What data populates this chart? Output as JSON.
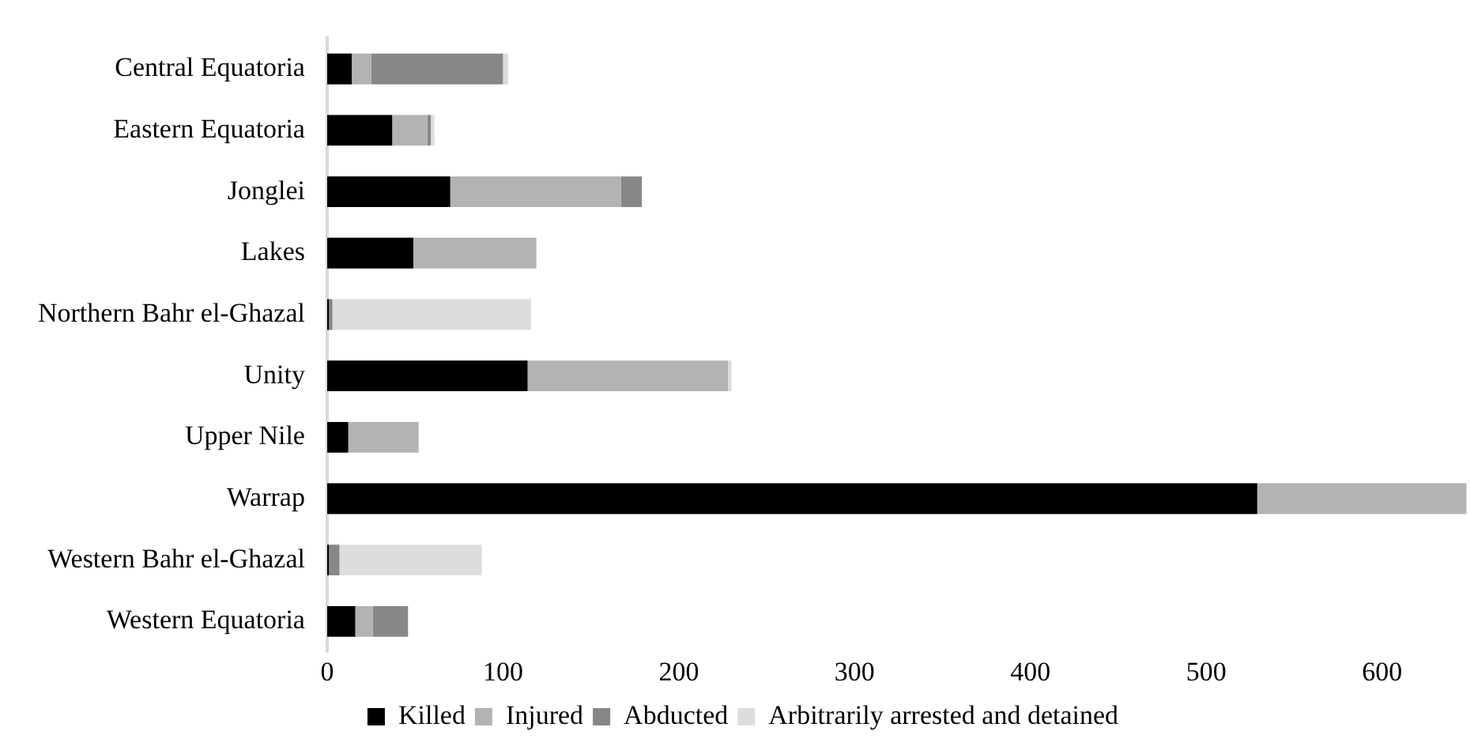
{
  "chart_data": {
    "type": "bar",
    "orientation": "horizontal",
    "stacked": true,
    "categories": [
      "Central Equatoria",
      "Eastern Equatoria",
      "Jonglei",
      "Lakes",
      "Northern Bahr el-Ghazal",
      "Unity",
      "Upper Nile",
      "Warrap",
      "Western Bahr el-Ghazal",
      "Western Equatoria"
    ],
    "series": [
      {
        "name": "Killed",
        "color": "#000000",
        "values": [
          14,
          37,
          70,
          49,
          1,
          114,
          12,
          529,
          1,
          16
        ]
      },
      {
        "name": "Injured",
        "color": "#b3b3b3",
        "values": [
          11,
          20,
          97,
          70,
          0,
          114,
          40,
          119,
          0,
          10
        ]
      },
      {
        "name": "Abducted",
        "color": "#878787",
        "values": [
          75,
          2,
          12,
          0,
          2,
          0,
          0,
          0,
          6,
          20
        ]
      },
      {
        "name": "Arbitrarily arrested and detained",
        "color": "#dddddd",
        "values": [
          3,
          2,
          0,
          0,
          113,
          2,
          0,
          0,
          81,
          0
        ]
      }
    ],
    "xlim": [
      0,
      650
    ],
    "xticks": [
      0,
      100,
      200,
      300,
      400,
      500,
      600
    ],
    "grid": false,
    "legend": "bottom"
  }
}
